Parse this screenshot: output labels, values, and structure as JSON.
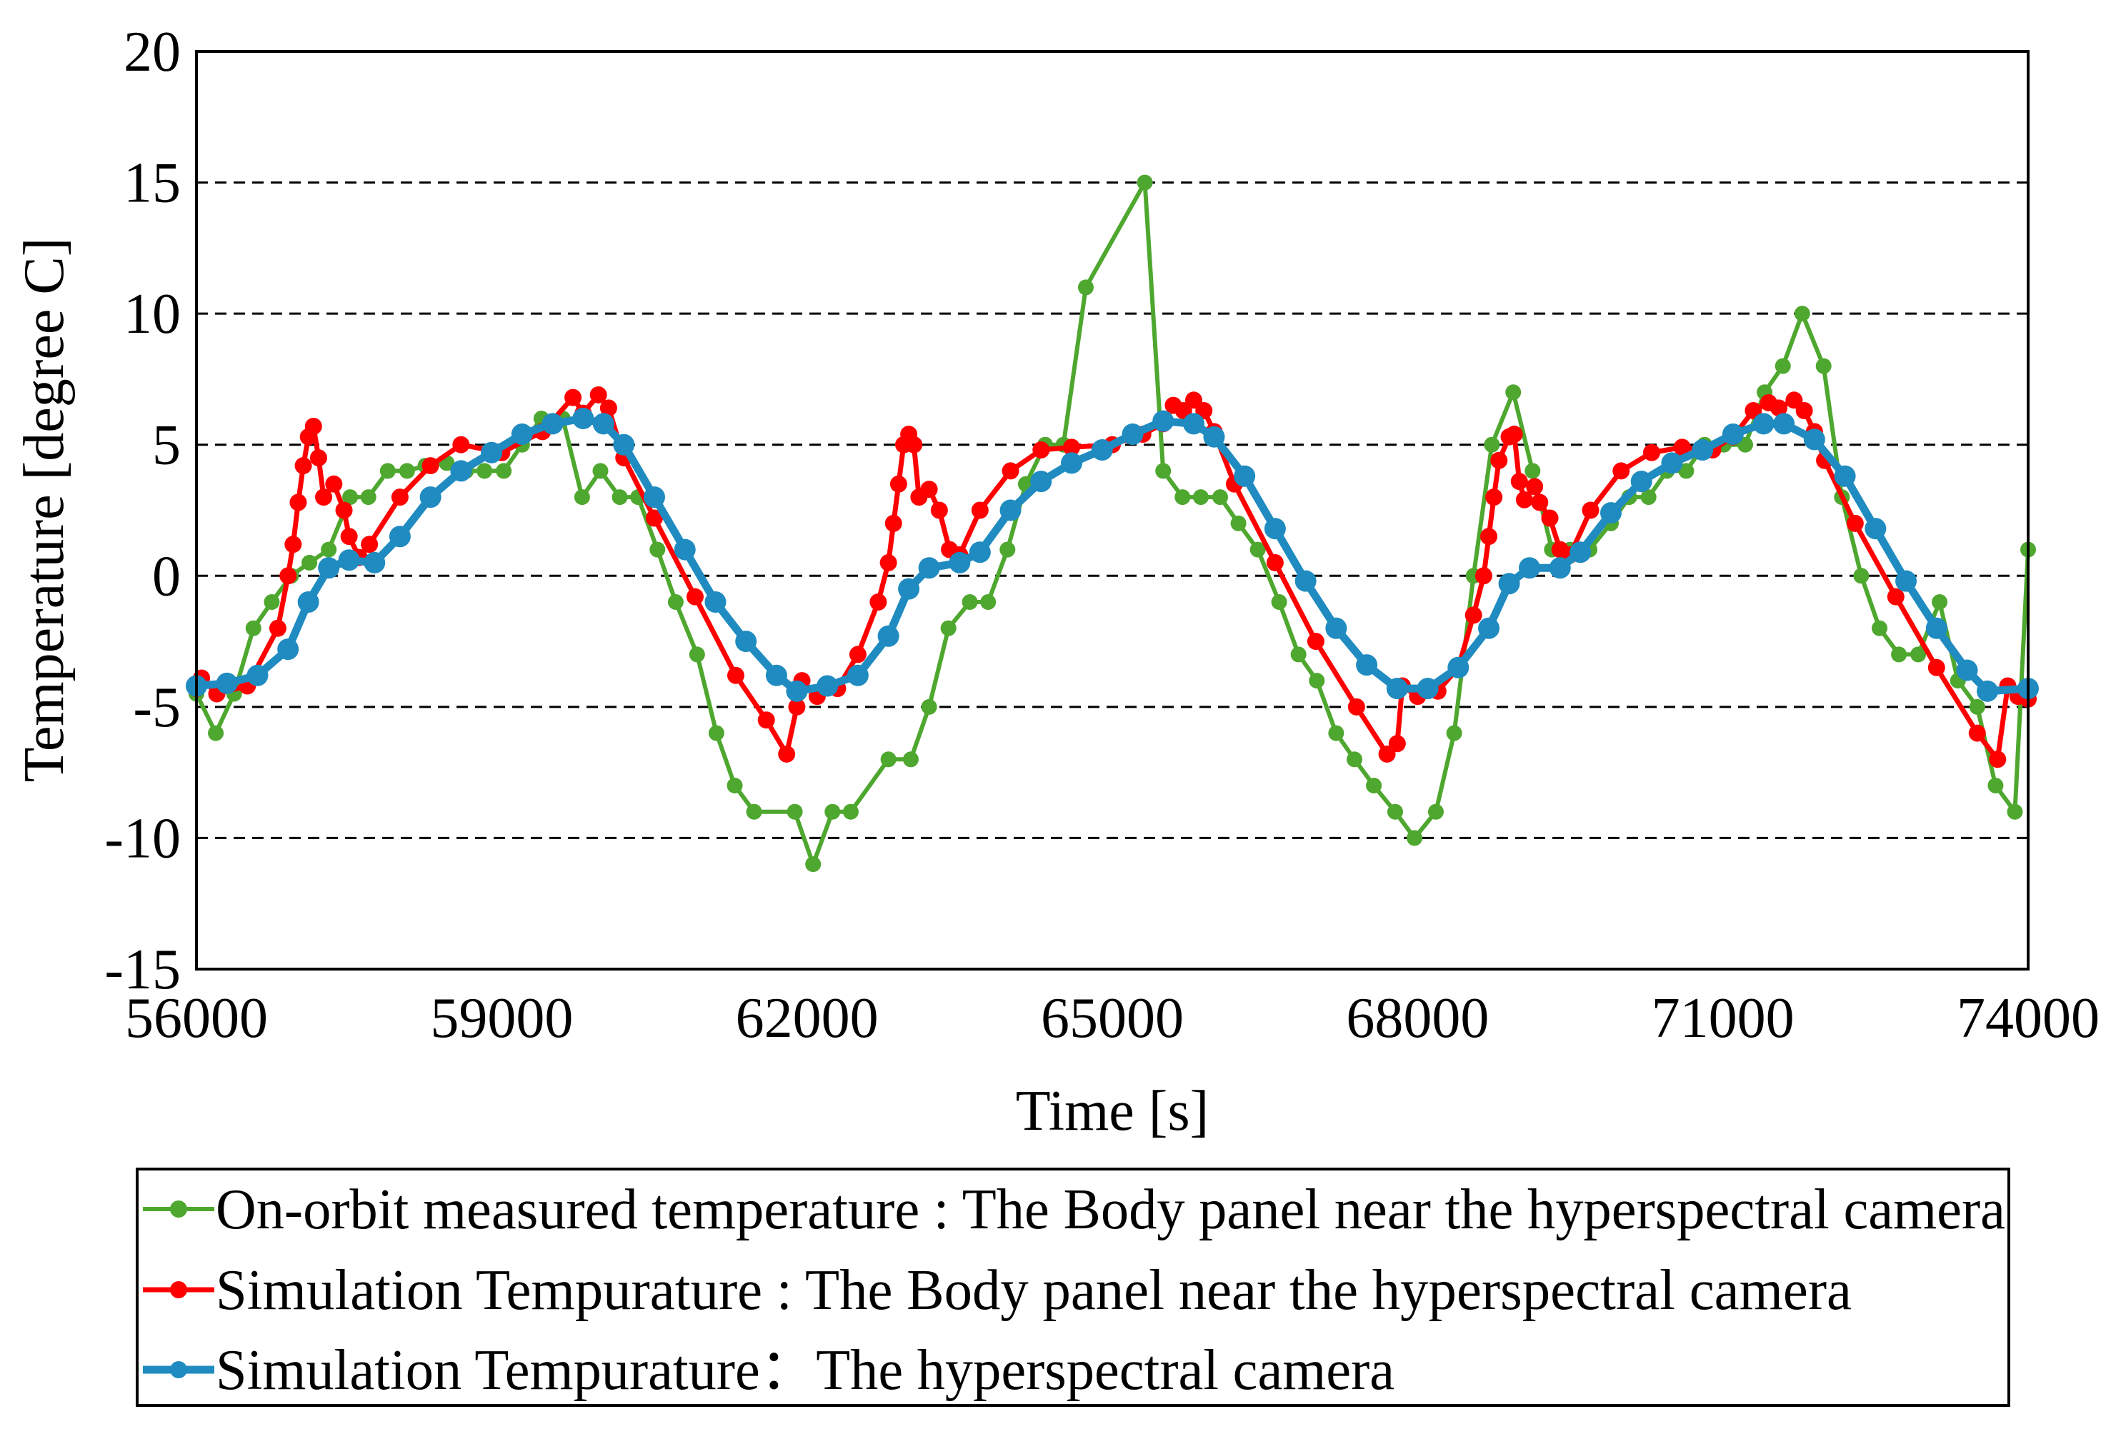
{
  "chart_data": {
    "type": "line",
    "title": "",
    "xlabel": "Time [s]",
    "ylabel": "Temperature [degree C]",
    "xlim": [
      56000,
      74000
    ],
    "ylim": [
      -15,
      20
    ],
    "xticks": [
      56000,
      59000,
      62000,
      65000,
      68000,
      71000,
      74000
    ],
    "yticks": [
      20,
      15,
      10,
      5,
      0,
      -5,
      -10,
      -15
    ],
    "grid": "horizontal dashed",
    "legend_placement": "bottom (below chart)",
    "series": [
      {
        "name": "On-orbit measured temperature : The Body panel near the hyperspectral camera",
        "color": "#4EA72E",
        "x": [
          56000,
          56190,
          56370,
          56560,
          56740,
          56930,
          57110,
          57300,
          57510,
          57690,
          57880,
          58070,
          58250,
          58460,
          58650,
          58830,
          59020,
          59200,
          59390,
          59600,
          59790,
          59970,
          60160,
          60340,
          60530,
          60710,
          60920,
          61110,
          61290,
          61480,
          61880,
          62060,
          62250,
          62430,
          62800,
          63020,
          63200,
          63390,
          63600,
          63780,
          63970,
          64150,
          64340,
          64520,
          64740,
          65320,
          65500,
          65690,
          65870,
          66060,
          66240,
          66430,
          66640,
          66830,
          67010,
          67200,
          67380,
          67570,
          67780,
          67970,
          68180,
          68360,
          68550,
          68730,
          68940,
          69130,
          69320,
          69500,
          69690,
          69900,
          70080,
          70270,
          70450,
          70640,
          70820,
          71010,
          71220,
          71410,
          71590,
          71780,
          71990,
          72170,
          72360,
          72540,
          72730,
          72920,
          73130,
          73310,
          73500,
          73680,
          73870,
          74000
        ],
        "y": [
          -4.5,
          -6,
          -4.5,
          -2,
          -1,
          0,
          0.5,
          1,
          3,
          3,
          4,
          4,
          4.2,
          4.3,
          4,
          4,
          4,
          5,
          6,
          6,
          3,
          4,
          3,
          3,
          1,
          -1,
          -3,
          -6,
          -8,
          -9,
          -9,
          -11,
          -9,
          -9,
          -7,
          -7,
          -5,
          -2,
          -1,
          -1,
          1,
          3.5,
          5,
          5,
          11,
          15,
          4,
          3,
          3,
          3,
          2,
          1,
          -1,
          -3,
          -4,
          -6,
          -7,
          -8,
          -9,
          -10,
          -9,
          -6,
          0,
          5,
          7,
          4,
          1,
          1,
          1,
          2,
          3,
          3,
          4,
          4,
          5,
          5,
          5,
          7,
          8,
          10,
          8,
          3,
          0,
          -2,
          -3,
          -3,
          -1,
          -4,
          -5,
          -8,
          -9,
          1
        ]
      },
      {
        "name": "Simulation Tempurature : The Body panel near the hyperspectral camera",
        "color": "#FF0000",
        "x": [
          56000,
          56050,
          56200,
          56500,
          56800,
          56900,
          56950,
          57000,
          57050,
          57100,
          57150,
          57200,
          57250,
          57350,
          57450,
          57500,
          57600,
          57700,
          58000,
          58300,
          58600,
          59000,
          59400,
          59700,
          59800,
          59950,
          60050,
          60200,
          60500,
          60900,
          61300,
          61600,
          61800,
          61900,
          61950,
          62100,
          62300,
          62500,
          62700,
          62800,
          62850,
          62900,
          62950,
          63000,
          63050,
          63100,
          63200,
          63300,
          63400,
          63500,
          63700,
          64000,
          64300,
          64600,
          65000,
          65300,
          65500,
          65600,
          65700,
          65800,
          65900,
          66000,
          66200,
          66600,
          67000,
          67400,
          67700,
          67800,
          67850,
          68000,
          68200,
          68400,
          68550,
          68650,
          68700,
          68750,
          68800,
          68900,
          68950,
          69000,
          69050,
          69150,
          69200,
          69300,
          69400,
          69500,
          69700,
          70000,
          70300,
          70600,
          70900,
          71100,
          71300,
          71450,
          71550,
          71700,
          71800,
          71900,
          72000,
          72300,
          72700,
          73100,
          73500,
          73700,
          73800,
          73900,
          74000
        ],
        "y": [
          -4.3,
          -3.9,
          -4.5,
          -4.2,
          -2,
          0,
          1.2,
          2.8,
          4.2,
          5.3,
          5.7,
          4.5,
          3,
          3.5,
          2.5,
          1.5,
          0.7,
          1.2,
          3,
          4.2,
          5,
          4.7,
          5.5,
          6.8,
          6.2,
          6.9,
          6.4,
          4.5,
          2.2,
          -0.8,
          -3.8,
          -5.5,
          -6.8,
          -5,
          -4,
          -4.6,
          -4.3,
          -3,
          -1,
          0.5,
          2,
          3.5,
          5,
          5.4,
          5,
          3,
          3.3,
          2.5,
          1,
          0.8,
          2.5,
          4,
          4.8,
          4.9,
          5,
          5.4,
          5.8,
          6.5,
          6.3,
          6.7,
          6.3,
          5.5,
          3.5,
          0.5,
          -2.5,
          -5,
          -6.8,
          -6.4,
          -4.2,
          -4.6,
          -4.4,
          -3.5,
          -1.5,
          0,
          1.5,
          3,
          4.4,
          5.3,
          5.4,
          3.6,
          2.9,
          3.4,
          2.8,
          2.2,
          1,
          0.8,
          2.5,
          4,
          4.7,
          4.9,
          4.8,
          5.3,
          6.3,
          6.6,
          6.4,
          6.7,
          6.3,
          5.5,
          4.4,
          2,
          -0.8,
          -3.5,
          -6,
          -7,
          -4.2,
          -4.6,
          -4.7
        ]
      },
      {
        "name": "Simulation Tempurature：The hyperspectral camera",
        "color": "#1F8BC0",
        "x": [
          56000,
          56300,
          56600,
          56900,
          57100,
          57300,
          57500,
          57750,
          58000,
          58300,
          58600,
          58900,
          59200,
          59500,
          59800,
          60000,
          60200,
          60500,
          60800,
          61100,
          61400,
          61700,
          61900,
          62200,
          62500,
          62800,
          63000,
          63200,
          63500,
          63700,
          64000,
          64300,
          64600,
          64900,
          65200,
          65500,
          65800,
          66000,
          66300,
          66600,
          66900,
          67200,
          67500,
          67800,
          68100,
          68400,
          68700,
          68900,
          69100,
          69400,
          69600,
          69900,
          70200,
          70500,
          70800,
          71100,
          71400,
          71600,
          71900,
          72200,
          72500,
          72800,
          73100,
          73400,
          73600,
          74000
        ],
        "y": [
          -4.2,
          -4.1,
          -3.8,
          -2.8,
          -1,
          0.3,
          0.6,
          0.5,
          1.5,
          3,
          4,
          4.7,
          5.4,
          5.8,
          6,
          5.8,
          5,
          3,
          1,
          -1,
          -2.5,
          -3.8,
          -4.4,
          -4.2,
          -3.8,
          -2.3,
          -0.5,
          0.3,
          0.5,
          0.9,
          2.5,
          3.6,
          4.3,
          4.8,
          5.4,
          5.9,
          5.8,
          5.3,
          3.8,
          1.8,
          -0.2,
          -2,
          -3.4,
          -4.3,
          -4.3,
          -3.5,
          -2,
          -0.3,
          0.3,
          0.3,
          0.9,
          2.4,
          3.6,
          4.3,
          4.8,
          5.4,
          5.8,
          5.8,
          5.2,
          3.8,
          1.8,
          -0.2,
          -2,
          -3.6,
          -4.4,
          -4.3
        ]
      }
    ]
  }
}
